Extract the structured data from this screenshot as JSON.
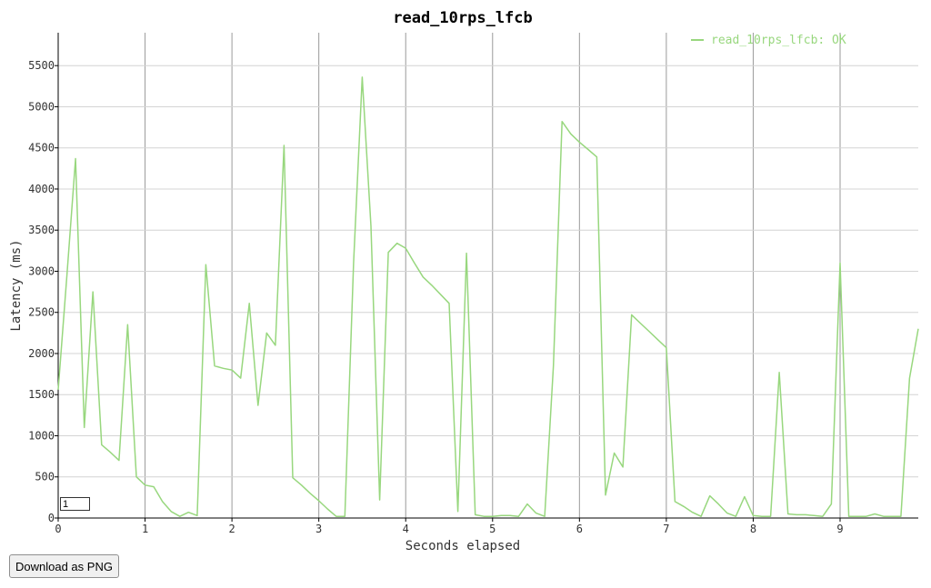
{
  "download_button_label": "Download as PNG",
  "smoothing_value": "1",
  "chart_data": {
    "type": "line",
    "title": "read_10rps_lfcb",
    "xlabel": "Seconds elapsed",
    "ylabel": "Latency (ms)",
    "xlim": [
      0,
      9.9
    ],
    "ylim": [
      0,
      5900
    ],
    "x_ticks": [
      0,
      1,
      2,
      3,
      4,
      5,
      6,
      7,
      8,
      9
    ],
    "y_ticks": [
      0,
      500,
      1000,
      1500,
      2000,
      2500,
      3000,
      3500,
      4000,
      4500,
      5000,
      5500
    ],
    "grid": true,
    "legend_position": "top-right",
    "series": [
      {
        "name": "read_10rps_lfcb: OK",
        "color": "#98d77e",
        "x": [
          0,
          0.1,
          0.2,
          0.3,
          0.4,
          0.5,
          0.6,
          0.7,
          0.8,
          0.9,
          1.0,
          1.1,
          1.2,
          1.3,
          1.4,
          1.5,
          1.6,
          1.7,
          1.8,
          1.9,
          2.0,
          2.1,
          2.2,
          2.3,
          2.4,
          2.5,
          2.6,
          2.7,
          2.8,
          2.9,
          3.0,
          3.1,
          3.2,
          3.3,
          3.4,
          3.5,
          3.6,
          3.7,
          3.8,
          3.9,
          4.0,
          4.1,
          4.2,
          4.3,
          4.4,
          4.5,
          4.6,
          4.7,
          4.8,
          4.9,
          5.0,
          5.1,
          5.2,
          5.3,
          5.4,
          5.5,
          5.6,
          5.7,
          5.8,
          5.9,
          6.0,
          6.1,
          6.2,
          6.3,
          6.4,
          6.5,
          6.6,
          6.7,
          6.8,
          6.9,
          7.0,
          7.1,
          7.2,
          7.3,
          7.4,
          7.5,
          7.6,
          7.7,
          7.8,
          7.9,
          8.0,
          8.1,
          8.2,
          8.3,
          8.4,
          8.5,
          8.6,
          8.7,
          8.8,
          8.9,
          9.0,
          9.1,
          9.2,
          9.3,
          9.4,
          9.5,
          9.6,
          9.7,
          9.8,
          9.9
        ],
        "y": [
          1560,
          2950,
          4370,
          1100,
          2750,
          890,
          800,
          700,
          2350,
          500,
          400,
          380,
          200,
          80,
          20,
          70,
          30,
          3080,
          1850,
          1820,
          1800,
          1700,
          2610,
          1370,
          2250,
          2100,
          4530,
          490,
          400,
          300,
          210,
          110,
          20,
          20,
          3100,
          5360,
          3550,
          220,
          3230,
          3340,
          3280,
          3100,
          2930,
          2830,
          2720,
          2610,
          80,
          3220,
          40,
          20,
          20,
          30,
          30,
          20,
          170,
          60,
          20,
          1850,
          4820,
          4670,
          4570,
          4480,
          4390,
          280,
          790,
          620,
          2470,
          2370,
          2270,
          2170,
          2070,
          200,
          140,
          70,
          20,
          270,
          170,
          60,
          20,
          260,
          30,
          20,
          20,
          1770,
          50,
          40,
          40,
          30,
          20,
          170,
          3100,
          20,
          20,
          20,
          50,
          20,
          20,
          20,
          1700,
          2300
        ]
      }
    ]
  }
}
